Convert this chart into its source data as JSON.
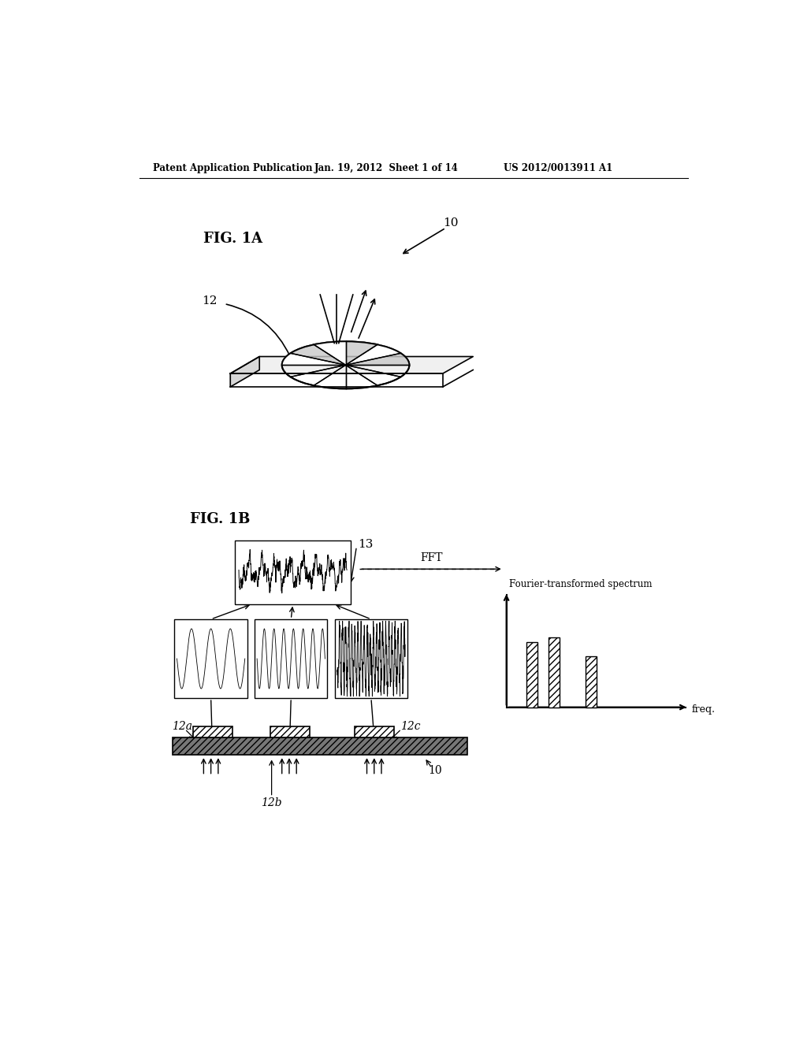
{
  "bg_color": "#ffffff",
  "header_left": "Patent Application Publication",
  "header_center": "Jan. 19, 2012  Sheet 1 of 14",
  "header_right": "US 2012/0013911 A1",
  "fig1a_label": "FIG. 1A",
  "fig1b_label": "FIG. 1B",
  "label_10_fig1a": "10",
  "label_12_fig1a": "12",
  "label_13": "13",
  "label_12a": "12a",
  "label_12b": "12b",
  "label_12c": "12c",
  "label_10_fig1b": "10",
  "label_fft": "FFT",
  "label_freq": "freq.",
  "label_fourier": "Fourier-transformed spectrum"
}
